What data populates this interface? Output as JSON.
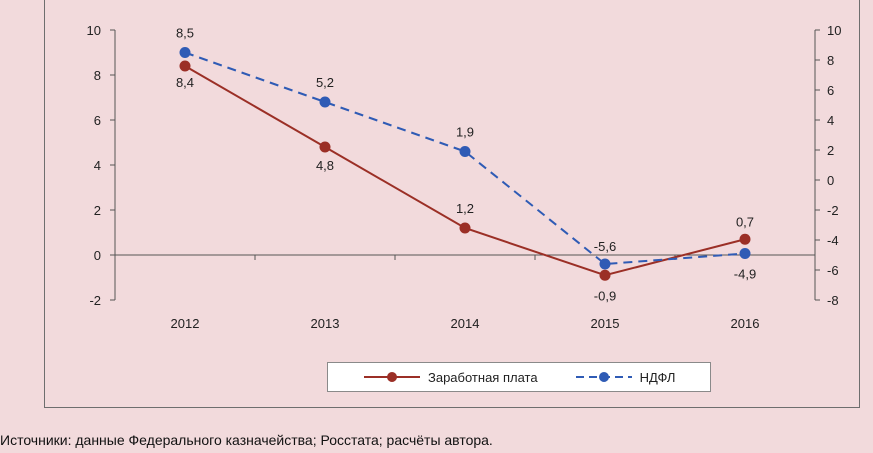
{
  "chart_data": {
    "type": "line",
    "categories": [
      "2012",
      "2013",
      "2014",
      "2015",
      "2016"
    ],
    "y_left": {
      "ylim": [
        -2,
        10
      ],
      "ticks": [
        "-2",
        "0",
        "2",
        "4",
        "6",
        "8",
        "10"
      ]
    },
    "y_right": {
      "ylim": [
        -8,
        10
      ],
      "ticks": [
        "-8",
        "-6",
        "-4",
        "-2",
        "0",
        "2",
        "4",
        "6",
        "8",
        "10"
      ]
    },
    "series": [
      {
        "name": "Заработная плата",
        "axis": "left",
        "values": [
          8.4,
          4.8,
          1.2,
          -0.9,
          0.7
        ],
        "labels": [
          "8,4",
          "4,8",
          "1,2",
          "-0,9",
          "0,7"
        ],
        "color": "#9b2f26",
        "style": "solid"
      },
      {
        "name": "НДФЛ",
        "axis": "right",
        "values": [
          8.5,
          5.2,
          1.9,
          -5.6,
          -4.9
        ],
        "labels": [
          "8,5",
          "5,2",
          "1,9",
          "-5,6",
          "-4,9"
        ],
        "color": "#2f5bb5",
        "style": "dashed"
      }
    ],
    "grid": false,
    "legend_position": "bottom"
  },
  "caption": "Источники: данные Федерального казначейства; Росстата; расчёты автора."
}
